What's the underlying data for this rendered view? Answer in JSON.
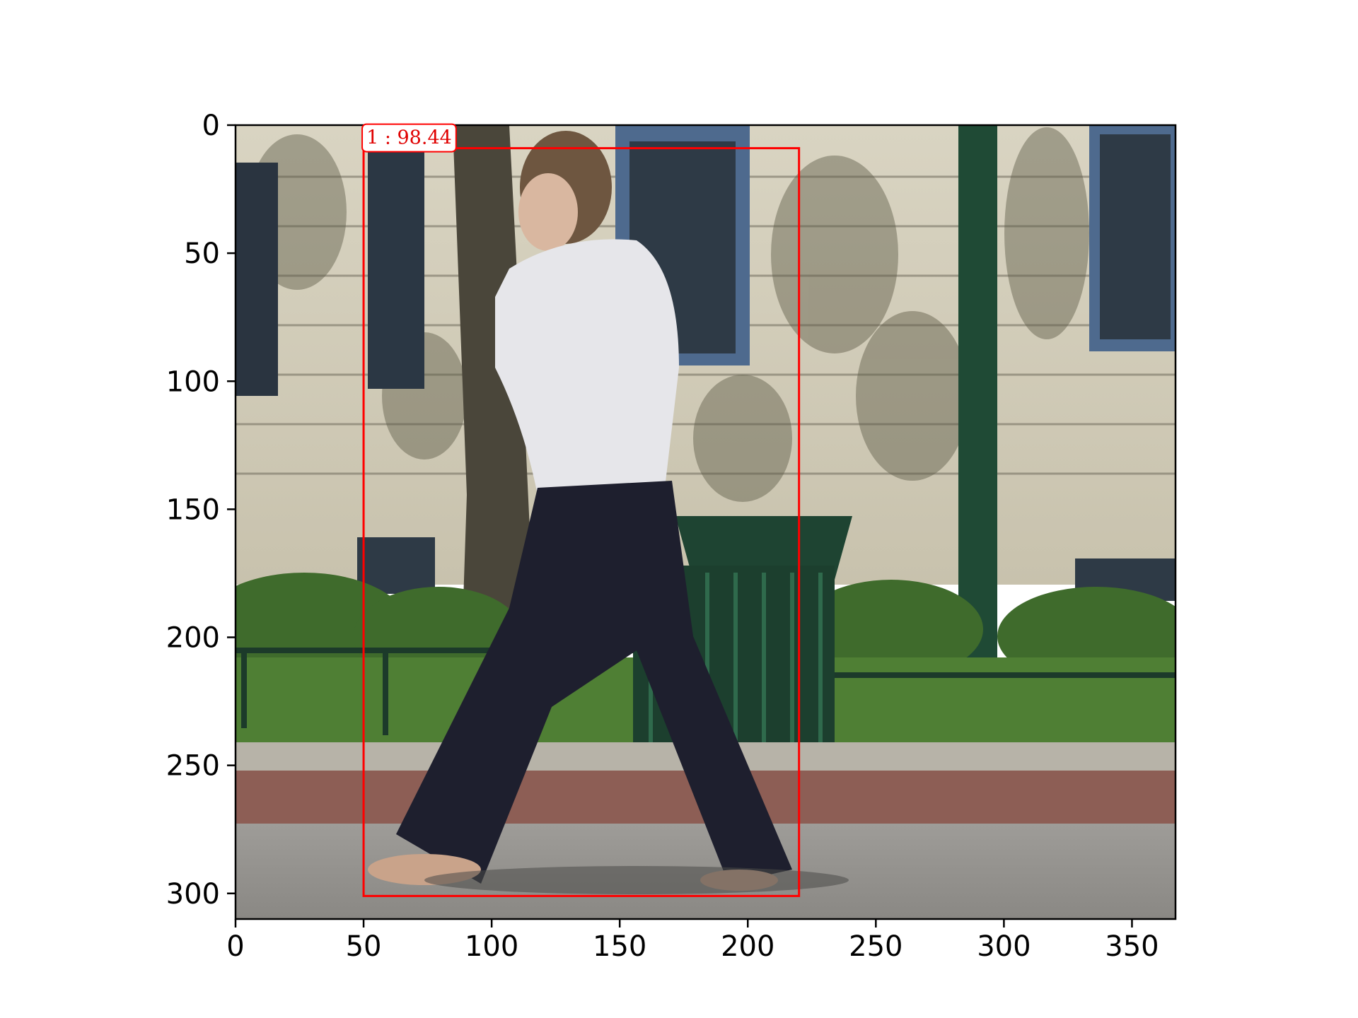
{
  "image": {
    "description_colors": {
      "bbox_color": "#ff0000",
      "label_text_color": "#e00000",
      "label_box_fill": "#ffffff"
    }
  },
  "axes": {
    "x_ticks": [
      "0",
      "50",
      "100",
      "150",
      "200",
      "250",
      "300",
      "350"
    ],
    "y_ticks": [
      "0",
      "50",
      "100",
      "150",
      "200",
      "250",
      "300"
    ],
    "x_range": [
      0,
      367
    ],
    "y_range": [
      0,
      310
    ]
  },
  "detection": {
    "label": "1 : 98.44",
    "x_min": 50,
    "y_min": 9,
    "x_max": 220,
    "y_max": 301
  }
}
